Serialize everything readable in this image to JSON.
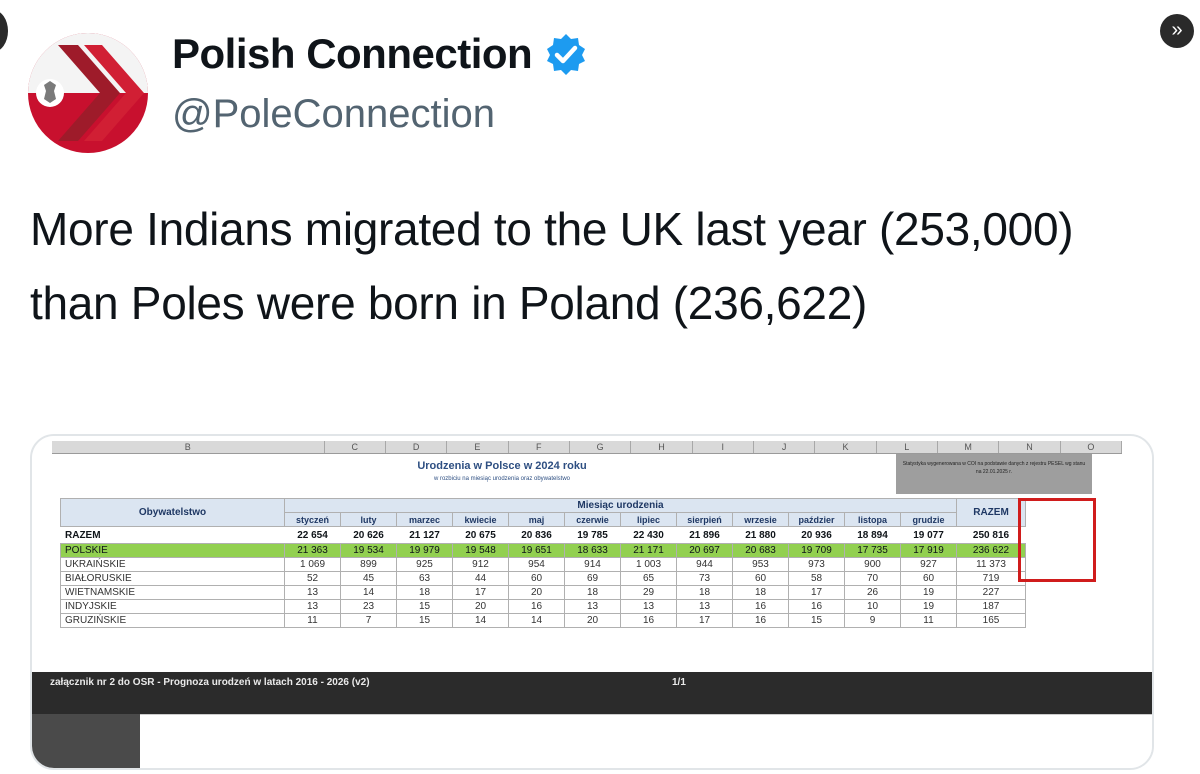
{
  "account": {
    "name": "Polish Connection",
    "handle": "@PoleConnection",
    "verified": true,
    "verified_color": "#1d9bf0"
  },
  "navigation": {
    "next_glyph": "»"
  },
  "tweet": {
    "text": "More Indians migrated to the UK last year (253,000) than Poles were born in Poland (236,622)"
  },
  "spreadsheet": {
    "column_letters": [
      "B",
      "C",
      "D",
      "E",
      "F",
      "G",
      "H",
      "I",
      "J",
      "K",
      "L",
      "M",
      "N",
      "O"
    ],
    "title": "Urodzenia w Polsce w 2024 roku",
    "subtitle": "w rozbiciu na miesiąc urodzenia oraz obywatelstwo",
    "note": "Statystyka wygenerowana w COI na podstawie danych z rejestru PESEL wg stanu na 22.01.2025 r.",
    "header_citizenship": "Obywatelstwo",
    "header_month_group": "Miesiąc urodzenia",
    "months": [
      "styczeń",
      "luty",
      "marzec",
      "kwiecie",
      "maj",
      "czerwie",
      "lipiec",
      "sierpień",
      "wrzesie",
      "paździer",
      "listopa",
      "grudzie"
    ],
    "total_header": "RAZEM",
    "rows": [
      {
        "label": "RAZEM",
        "values": [
          "22 654",
          "20 626",
          "21 127",
          "20 675",
          "20 836",
          "19 785",
          "22 430",
          "21 896",
          "21 880",
          "20 936",
          "18 894",
          "19 077"
        ],
        "total": "250 816"
      },
      {
        "label": "POLSKIE",
        "values": [
          "21 363",
          "19 534",
          "19 979",
          "19 548",
          "19 651",
          "18 633",
          "21 171",
          "20 697",
          "20 683",
          "19 709",
          "17 735",
          "17 919"
        ],
        "total": "236 622"
      },
      {
        "label": "UKRAIŃSKIE",
        "values": [
          "1 069",
          "899",
          "925",
          "912",
          "954",
          "914",
          "1 003",
          "944",
          "953",
          "973",
          "900",
          "927"
        ],
        "total": "11 373"
      },
      {
        "label": "BIAŁORUSKIE",
        "values": [
          "52",
          "45",
          "63",
          "44",
          "60",
          "69",
          "65",
          "73",
          "60",
          "58",
          "70",
          "60"
        ],
        "total": "719"
      },
      {
        "label": "WIETNAMSKIE",
        "values": [
          "13",
          "14",
          "18",
          "17",
          "20",
          "18",
          "29",
          "18",
          "18",
          "17",
          "26",
          "19"
        ],
        "total": "227"
      },
      {
        "label": "INDYJSKIE",
        "values": [
          "13",
          "23",
          "15",
          "20",
          "16",
          "13",
          "13",
          "13",
          "16",
          "16",
          "10",
          "19"
        ],
        "total": "187"
      },
      {
        "label": "GRUZIŃSKIE",
        "values": [
          "11",
          "7",
          "15",
          "14",
          "14",
          "20",
          "16",
          "17",
          "16",
          "15",
          "9",
          "11"
        ],
        "total": "165"
      }
    ],
    "footer_left": "załącznik nr 2 do OSR - Prognoza urodzeń w latach 2016 - 2026 (v2)",
    "footer_page": "1/1",
    "highlight_color": "#92d050",
    "box_color": "#d01c1c"
  }
}
